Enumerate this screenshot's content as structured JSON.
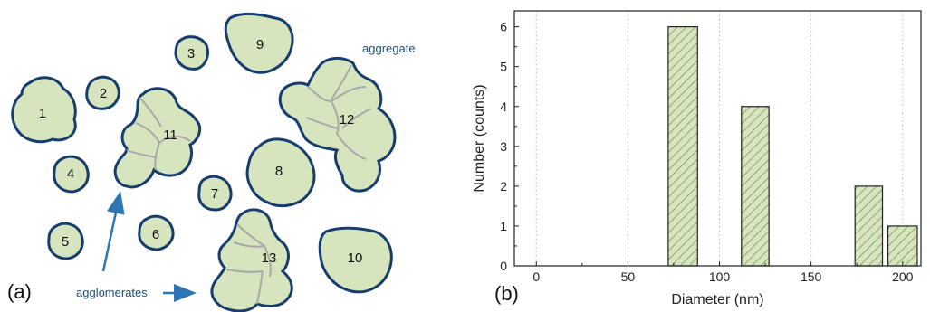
{
  "diagram": {
    "panel_label": "(a)",
    "particle_labels": [
      "1",
      "2",
      "3",
      "4",
      "5",
      "6",
      "7",
      "8",
      "9",
      "10",
      "11",
      "12",
      "13"
    ],
    "aggregate_label": "aggregate",
    "agglomerates_label": "agglomerates",
    "colors": {
      "fill": "#d6e5be",
      "outline": "#173d6e",
      "inner": "#a8a8a8",
      "annotation": "#1f4e79",
      "arrow": "#2e75b6"
    }
  },
  "chart_panel_label": "(b)",
  "chart_data": {
    "type": "bar",
    "xlabel": "Diameter (nm)",
    "ylabel": "Number (counts)",
    "xlim": [
      -12,
      210
    ],
    "ylim": [
      0,
      6.4
    ],
    "x_ticks": [
      "0",
      "50",
      "100",
      "150",
      "200"
    ],
    "y_ticks": [
      "0",
      "1",
      "2",
      "3",
      "4",
      "5",
      "6"
    ],
    "bins": [
      {
        "from": 72,
        "to": 88,
        "count": 6
      },
      {
        "from": 112,
        "to": 127,
        "count": 4
      },
      {
        "from": 174,
        "to": 189,
        "count": 2
      },
      {
        "from": 192,
        "to": 208,
        "count": 1
      }
    ],
    "grid": "dotted vertical",
    "bar_fill": "#d6e5be",
    "bar_hatch": "diagonal"
  }
}
